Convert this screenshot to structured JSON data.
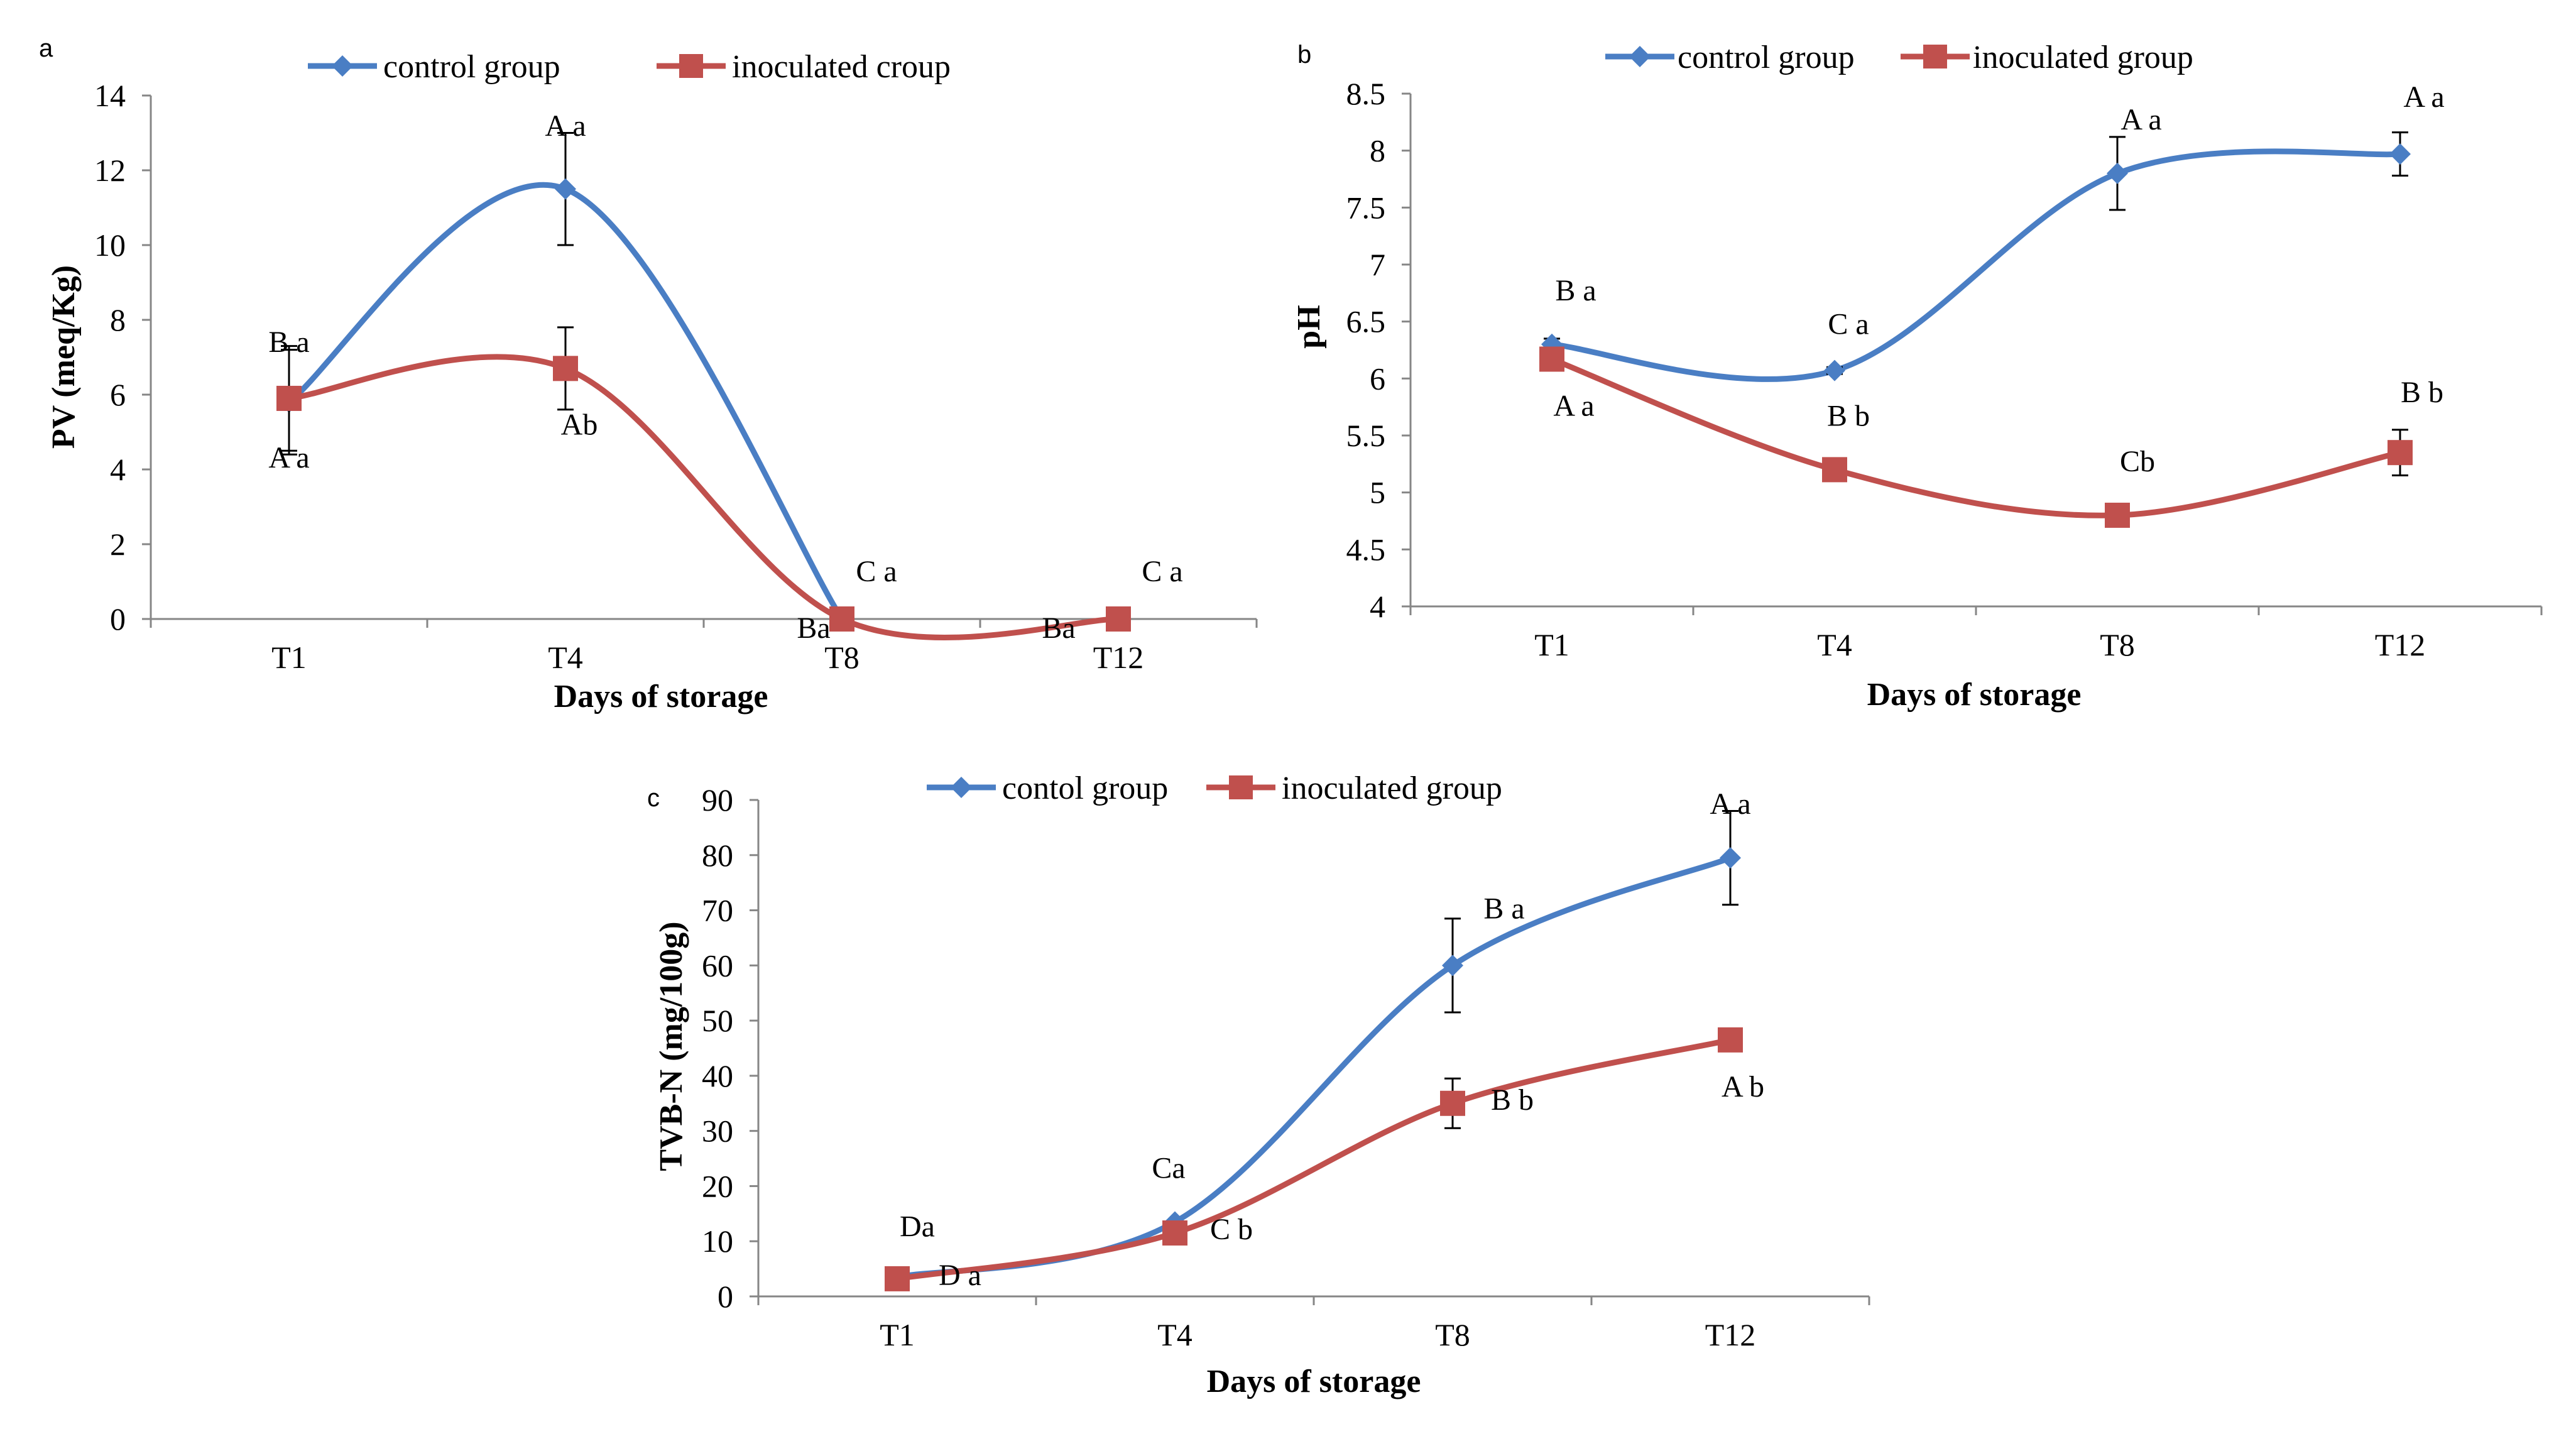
{
  "colors": {
    "control": "#4a7ec4",
    "inoculated": "#c0504d"
  },
  "chart_data": [
    {
      "panel": "a",
      "type": "line",
      "xlabel": "Days of storage",
      "ylabel": "PV (meq/Kg)",
      "categories": [
        "T1",
        "T4",
        "T8",
        "T12"
      ],
      "ylim": [
        0,
        14
      ],
      "yticks": [
        0,
        2,
        4,
        6,
        8,
        10,
        12,
        14
      ],
      "legend": "top",
      "series": [
        {
          "name": "control group",
          "marker": "diamond",
          "values": [
            5.8,
            11.5,
            0,
            null
          ],
          "errors": [
            1.4,
            1.5,
            0,
            null
          ],
          "labels": [
            "B a",
            "A a",
            "Ba",
            ""
          ]
        },
        {
          "name": "inoculated croup",
          "marker": "square",
          "values": [
            5.9,
            6.7,
            0,
            0
          ],
          "errors": [
            1.4,
            1.1,
            0,
            0
          ],
          "labels": [
            "A a",
            "Ab",
            "C a",
            "C a"
          ]
        }
      ],
      "extra_labels": [
        "Ba"
      ]
    },
    {
      "panel": "b",
      "type": "line",
      "xlabel": "Days of storage",
      "ylabel": "pH",
      "categories": [
        "T1",
        "T4",
        "T8",
        "T12"
      ],
      "ylim": [
        4,
        8.5
      ],
      "yticks": [
        "4",
        "4.5",
        "5",
        "5.5",
        "6",
        "6.5",
        "7",
        "7.5",
        "8",
        "8.5"
      ],
      "legend": "top",
      "series": [
        {
          "name": "control group",
          "marker": "diamond",
          "values": [
            6.3,
            6.07,
            7.8,
            7.97
          ],
          "errors": [
            0.05,
            0.03,
            0.32,
            0.19
          ],
          "labels": [
            "B a",
            "C a",
            "A a",
            "A a"
          ]
        },
        {
          "name": "inoculated group",
          "marker": "square",
          "values": [
            6.17,
            5.2,
            4.8,
            5.35
          ],
          "errors": [
            0.05,
            0.1,
            0.03,
            0.2
          ],
          "labels": [
            "A a",
            "B b",
            "Cb",
            "B b"
          ]
        }
      ]
    },
    {
      "panel": "c",
      "type": "line",
      "xlabel": "Days of storage",
      "ylabel": "TVB-N (mg/100g)",
      "categories": [
        "T1",
        "T4",
        "T8",
        "T12"
      ],
      "ylim": [
        0,
        90
      ],
      "yticks": [
        0,
        10,
        20,
        30,
        40,
        50,
        60,
        70,
        80,
        90
      ],
      "legend": "top",
      "series": [
        {
          "name": "contol group",
          "marker": "diamond",
          "values": [
            3.5,
            13.5,
            60,
            79.5
          ],
          "errors": [
            0,
            0,
            8.5,
            8.5
          ],
          "labels": [
            "Da",
            "Ca",
            "B a",
            "A a"
          ]
        },
        {
          "name": "inoculated group",
          "marker": "square",
          "values": [
            3.2,
            11.5,
            35,
            46.5
          ],
          "errors": [
            0,
            0,
            4.5,
            0
          ],
          "labels": [
            "D a",
            "C b",
            "B b",
            "A b"
          ]
        }
      ]
    }
  ]
}
